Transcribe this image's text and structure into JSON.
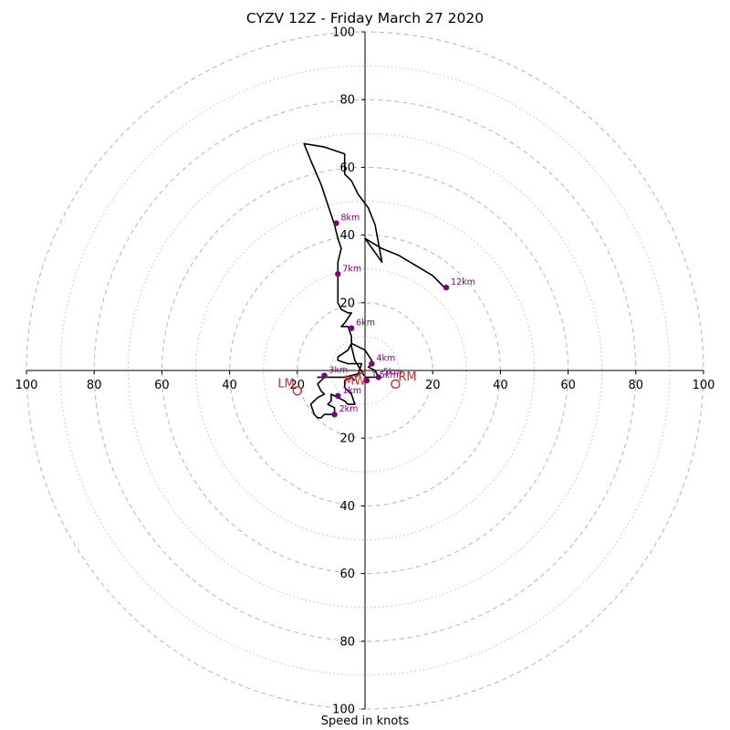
{
  "chart_data": {
    "type": "hodograph",
    "title": "CYZV 12Z - Friday March 27 2020",
    "xlabel": "Speed in knots",
    "ylabel": "",
    "range": [
      -100,
      100
    ],
    "ring_step_major": 20,
    "ring_step_minor": 10,
    "tick_labels_x": [
      "100",
      "80",
      "60",
      "40",
      "20",
      "20",
      "40",
      "60",
      "80",
      "100"
    ],
    "tick_values_x": [
      -100,
      -80,
      -60,
      -40,
      -20,
      20,
      40,
      60,
      80,
      100
    ],
    "tick_labels_y": [
      "100",
      "80",
      "60",
      "40",
      "20",
      "20",
      "40",
      "60",
      "80",
      "100"
    ],
    "tick_values_y": [
      100,
      80,
      60,
      40,
      20,
      -20,
      -40,
      -60,
      -80,
      -100
    ],
    "colors": {
      "trace": "#000000",
      "height_marker": "#800080",
      "storm_motion": "#d62728",
      "grid": "#bbbbbb"
    },
    "trace": [
      [
        -3,
        -3
      ],
      [
        -4,
        -2
      ],
      [
        -6,
        -3
      ],
      [
        -6,
        -5
      ],
      [
        -4,
        -7
      ],
      [
        -3,
        -10
      ],
      [
        -5,
        -10
      ],
      [
        -6,
        -9
      ],
      [
        -8,
        -8
      ],
      [
        -10,
        -7
      ],
      [
        -10,
        -9
      ],
      [
        -11,
        -10
      ],
      [
        -9,
        -11
      ],
      [
        -9,
        -13
      ],
      [
        -11,
        -13
      ],
      [
        -12,
        -13
      ],
      [
        -13,
        -14
      ],
      [
        -14,
        -14
      ],
      [
        -15,
        -13
      ],
      [
        -16,
        -10
      ],
      [
        -14,
        -8
      ],
      [
        -12,
        -7
      ],
      [
        -13,
        -6
      ],
      [
        -14,
        -4
      ],
      [
        -12,
        -2
      ],
      [
        -13,
        -2
      ],
      [
        -14,
        -2
      ],
      [
        -12,
        -2
      ],
      [
        -10,
        -2
      ],
      [
        -6,
        -2
      ],
      [
        -2,
        -1
      ],
      [
        -1,
        2
      ],
      [
        -5,
        2
      ],
      [
        -8,
        3
      ],
      [
        -8,
        4
      ],
      [
        -5,
        6
      ],
      [
        -4,
        8
      ],
      [
        0,
        6
      ],
      [
        2,
        3
      ],
      [
        2,
        2
      ],
      [
        1,
        1
      ],
      [
        3,
        0
      ],
      [
        4,
        -2
      ],
      [
        0,
        -2
      ],
      [
        -3,
        3
      ],
      [
        -4,
        7
      ],
      [
        -4,
        10
      ],
      [
        -5,
        13
      ],
      [
        -7,
        13
      ],
      [
        -6,
        14
      ],
      [
        -4,
        17
      ],
      [
        -5,
        17
      ],
      [
        -7,
        18
      ],
      [
        -8,
        20
      ],
      [
        -8,
        28
      ],
      [
        -8,
        29
      ],
      [
        -8,
        32
      ],
      [
        -7,
        36
      ],
      [
        -8,
        39
      ],
      [
        -9,
        43
      ],
      [
        -13,
        55
      ],
      [
        -16,
        62
      ],
      [
        -18,
        67
      ],
      [
        -12,
        66
      ],
      [
        -6,
        64
      ],
      [
        -6,
        60
      ],
      [
        -6,
        58
      ],
      [
        -4,
        56
      ],
      [
        -2,
        52
      ],
      [
        1,
        48
      ],
      [
        3,
        43
      ],
      [
        5,
        32
      ],
      [
        0,
        39
      ],
      [
        5,
        36
      ],
      [
        10,
        34
      ],
      [
        20,
        28
      ],
      [
        24,
        24
      ]
    ],
    "height_markers": [
      {
        "label": "1km",
        "u": -8,
        "v": -7.5
      },
      {
        "label": "2km",
        "u": -9,
        "v": -13
      },
      {
        "label": "3km",
        "u": -12,
        "v": -1.5
      },
      {
        "label": "4km",
        "u": 2,
        "v": 2
      },
      {
        "label": "5km",
        "u": 4,
        "v": -2
      },
      {
        "label": "6km",
        "u": -4,
        "v": 12.5
      },
      {
        "label": "7km",
        "u": -8,
        "v": 28.5
      },
      {
        "label": "8km",
        "u": -8.5,
        "v": 43.5
      },
      {
        "label": "12km",
        "u": 24,
        "v": 24.5
      },
      {
        "label": "1.5km",
        "u": 0.5,
        "v": -3
      }
    ],
    "storm_motions": [
      {
        "label": "RM",
        "u": 9,
        "v": -4
      },
      {
        "label": "LM",
        "u": -20,
        "v": -6
      },
      {
        "label": "MW",
        "u": -3,
        "v": -2
      }
    ]
  }
}
